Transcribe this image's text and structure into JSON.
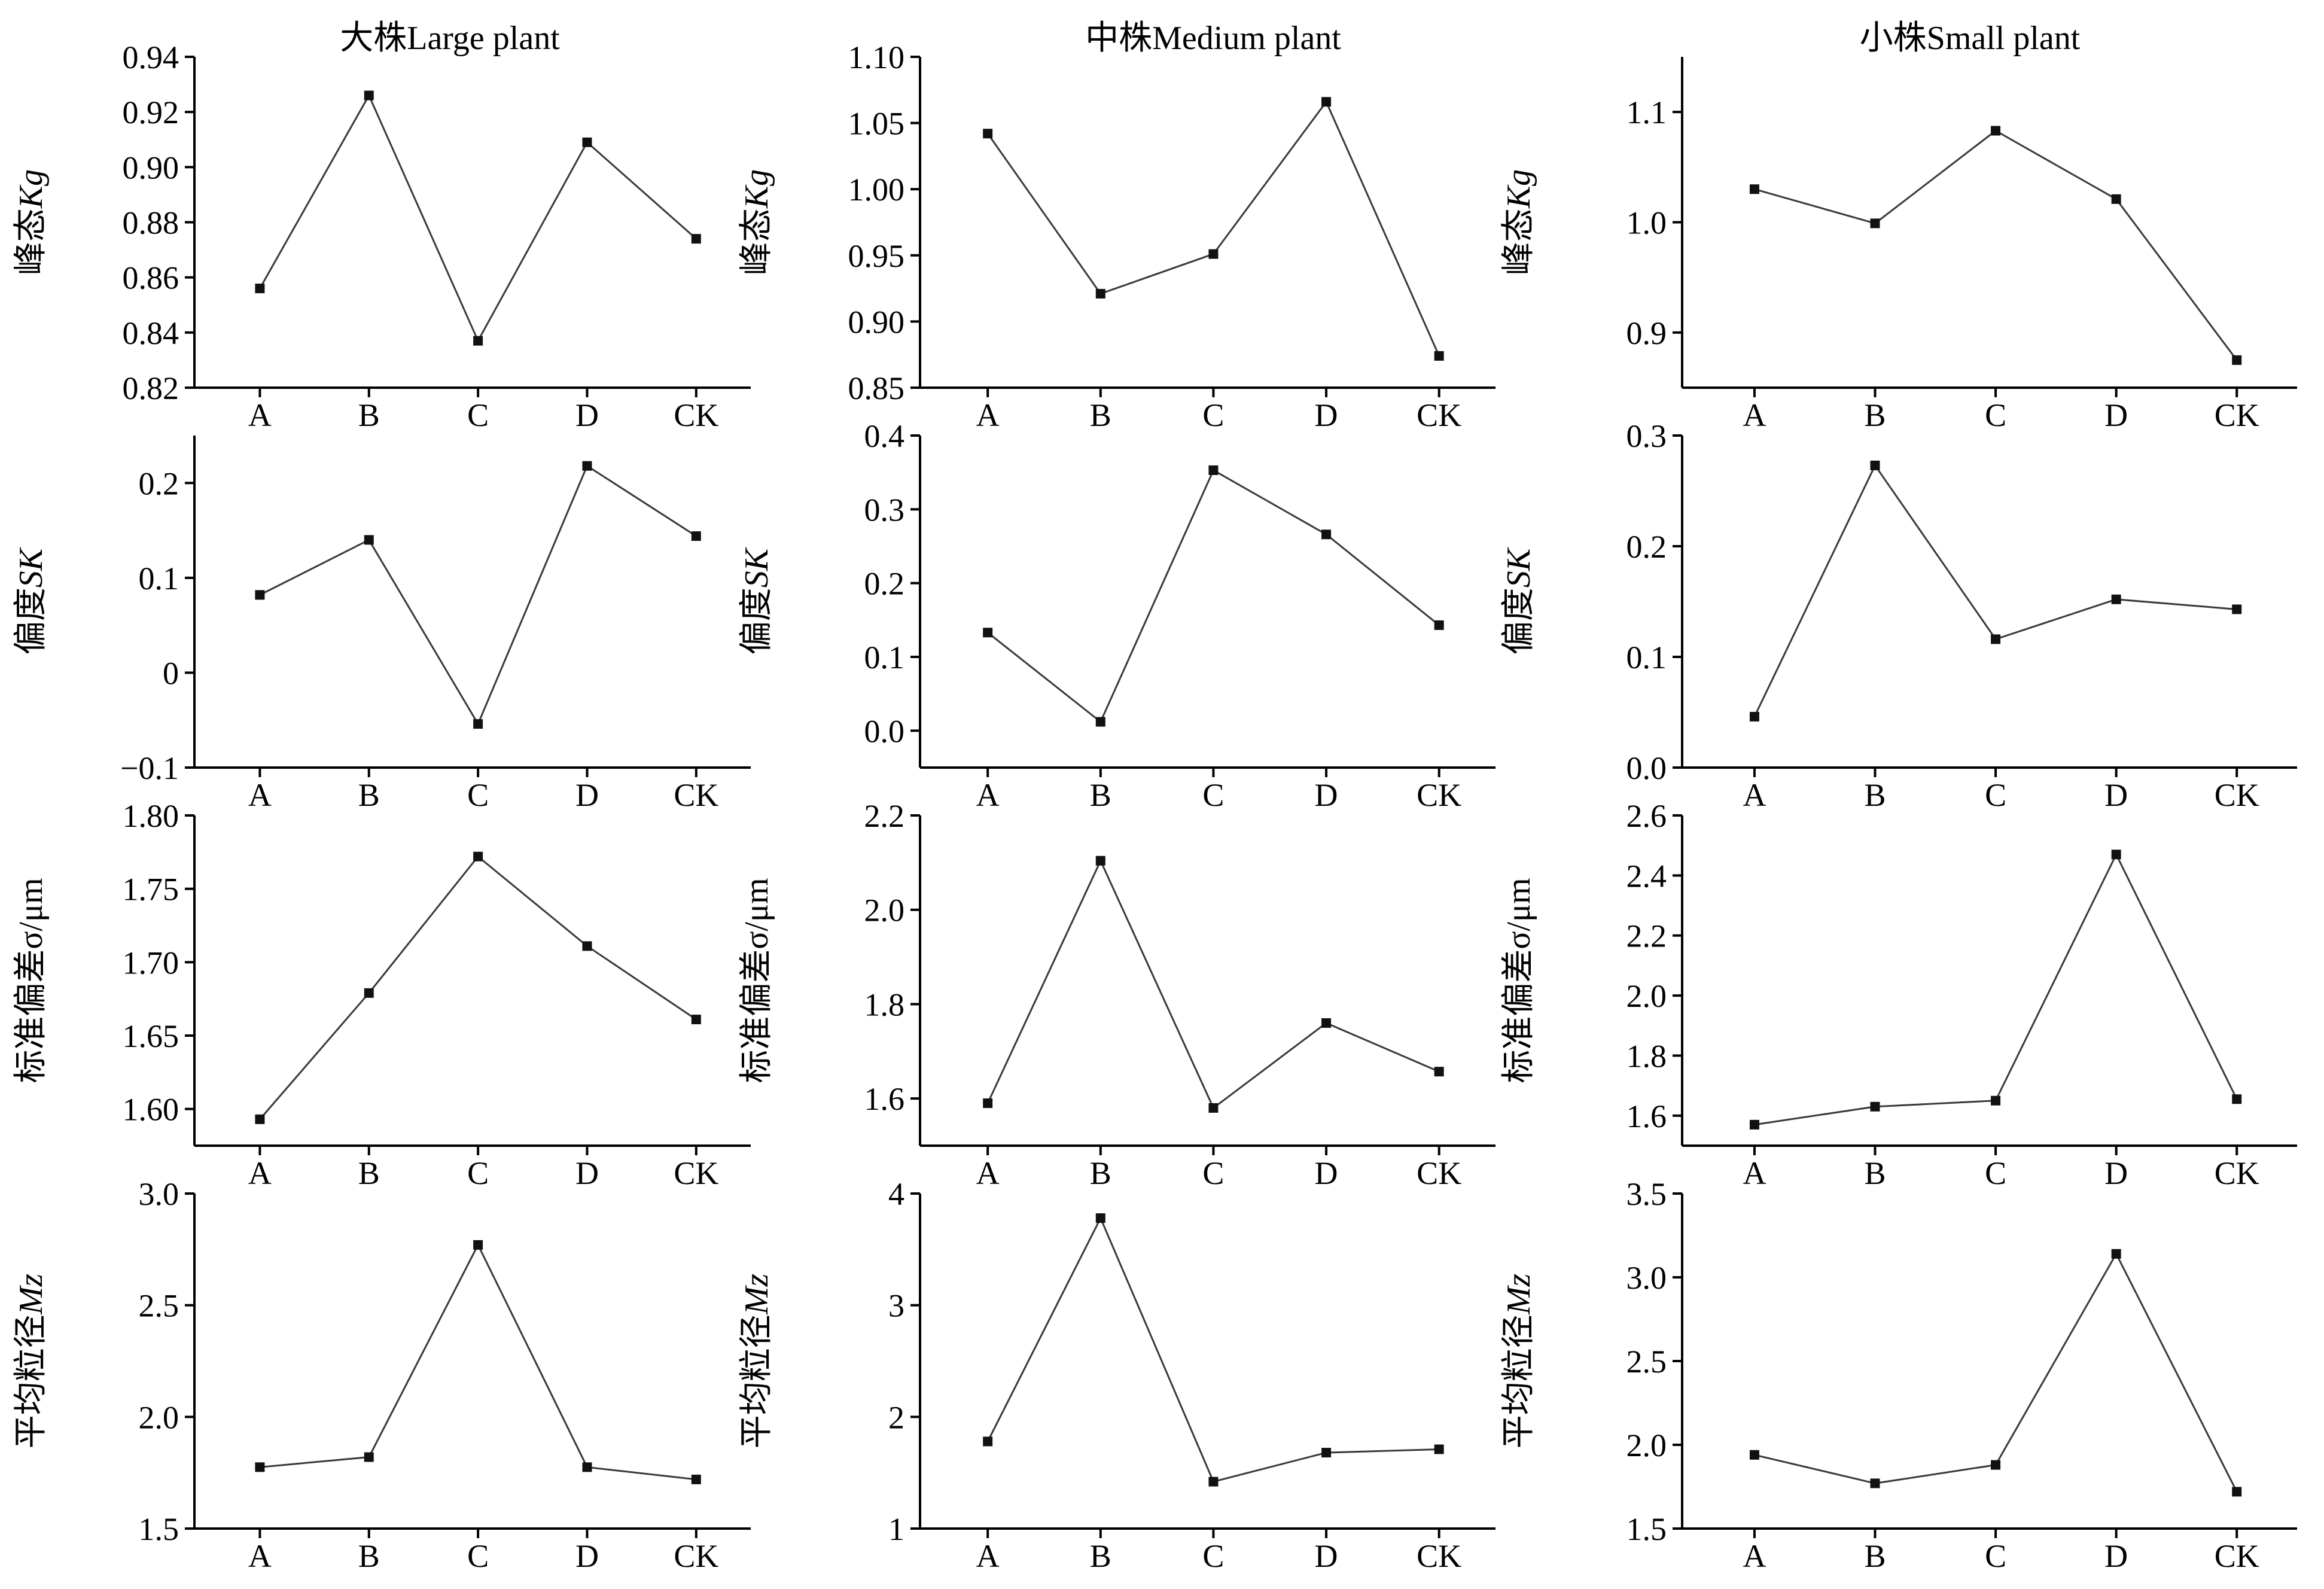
{
  "figure": {
    "column_titles": [
      "大株Large plant",
      "中株Medium plant",
      "小株Small plant"
    ]
  },
  "chart_data": [
    {
      "type": "line",
      "column": "大株Large plant",
      "ylabel": "峰态",
      "ylabel_italic": "Kg",
      "categories": [
        "A",
        "B",
        "C",
        "D",
        "CK"
      ],
      "values": [
        0.856,
        0.926,
        0.837,
        0.909,
        0.874
      ],
      "ylim": [
        0.82,
        0.94
      ],
      "yticks": [
        "0.82",
        "0.84",
        "0.86",
        "0.88",
        "0.90",
        "0.92",
        "0.94"
      ]
    },
    {
      "type": "line",
      "column": "中株Medium plant",
      "ylabel": "峰态",
      "ylabel_italic": "Kg",
      "categories": [
        "A",
        "B",
        "C",
        "D",
        "CK"
      ],
      "values": [
        1.042,
        0.921,
        0.951,
        1.066,
        0.874
      ],
      "ylim": [
        0.85,
        1.1
      ],
      "yticks": [
        "0.85",
        "0.90",
        "0.95",
        "1.00",
        "1.05",
        "1.10"
      ]
    },
    {
      "type": "line",
      "column": "小株Small plant",
      "ylabel": "峰态",
      "ylabel_italic": "Kg",
      "categories": [
        "A",
        "B",
        "C",
        "D",
        "CK"
      ],
      "values": [
        1.03,
        0.999,
        1.083,
        1.021,
        0.875
      ],
      "ylim": [
        0.85,
        1.15
      ],
      "yticks": [
        "0.9",
        "1.0",
        "1.1"
      ]
    },
    {
      "type": "line",
      "column": "大株Large plant",
      "ylabel": "偏度",
      "ylabel_italic": "SK",
      "categories": [
        "A",
        "B",
        "C",
        "D",
        "CK"
      ],
      "values": [
        0.082,
        0.14,
        -0.054,
        0.218,
        0.144
      ],
      "ylim": [
        -0.1,
        0.25
      ],
      "yticks": [
        "−0.1",
        "0",
        "0.1",
        "0.2"
      ]
    },
    {
      "type": "line",
      "column": "中株Medium plant",
      "ylabel": "偏度",
      "ylabel_italic": "SK",
      "categories": [
        "A",
        "B",
        "C",
        "D",
        "CK"
      ],
      "values": [
        0.133,
        0.012,
        0.353,
        0.266,
        0.143
      ],
      "ylim": [
        -0.05,
        0.4
      ],
      "yticks": [
        "0.0",
        "0.1",
        "0.2",
        "0.3",
        "0.4"
      ]
    },
    {
      "type": "line",
      "column": "小株Small plant",
      "ylabel": "偏度",
      "ylabel_italic": "SK",
      "categories": [
        "A",
        "B",
        "C",
        "D",
        "CK"
      ],
      "values": [
        0.046,
        0.273,
        0.116,
        0.152,
        0.143
      ],
      "ylim": [
        0.0,
        0.3
      ],
      "yticks": [
        "0.0",
        "0.1",
        "0.2",
        "0.3"
      ]
    },
    {
      "type": "line",
      "column": "大株Large plant",
      "ylabel": "标准偏差σ/μm",
      "ylabel_italic": "",
      "categories": [
        "A",
        "B",
        "C",
        "D",
        "CK"
      ],
      "values": [
        1.593,
        1.679,
        1.772,
        1.711,
        1.661
      ],
      "ylim": [
        1.575,
        1.8
      ],
      "yticks": [
        "1.60",
        "1.65",
        "1.70",
        "1.75",
        "1.80"
      ]
    },
    {
      "type": "line",
      "column": "中株Medium plant",
      "ylabel": "标准偏差σ/μm",
      "ylabel_italic": "",
      "categories": [
        "A",
        "B",
        "C",
        "D",
        "CK"
      ],
      "values": [
        1.59,
        2.104,
        1.58,
        1.76,
        1.657
      ],
      "ylim": [
        1.5,
        2.2
      ],
      "yticks": [
        "1.6",
        "1.8",
        "2.0",
        "2.2"
      ]
    },
    {
      "type": "line",
      "column": "小株Small plant",
      "ylabel": "标准偏差σ/μm",
      "ylabel_italic": "",
      "categories": [
        "A",
        "B",
        "C",
        "D",
        "CK"
      ],
      "values": [
        1.57,
        1.63,
        1.65,
        2.47,
        1.655
      ],
      "ylim": [
        1.5,
        2.6
      ],
      "yticks": [
        "1.6",
        "1.8",
        "2.0",
        "2.2",
        "2.4",
        "2.6"
      ]
    },
    {
      "type": "line",
      "column": "大株Large plant",
      "ylabel": "平均粒径",
      "ylabel_italic": "Mz",
      "categories": [
        "A",
        "B",
        "C",
        "D",
        "CK"
      ],
      "values": [
        1.775,
        1.82,
        2.77,
        1.775,
        1.72
      ],
      "ylim": [
        1.5,
        3.0
      ],
      "yticks": [
        "1.5",
        "2.0",
        "2.5",
        "3.0"
      ]
    },
    {
      "type": "line",
      "column": "中株Medium plant",
      "ylabel": "平均粒径",
      "ylabel_italic": "Mz",
      "categories": [
        "A",
        "B",
        "C",
        "D",
        "CK"
      ],
      "values": [
        1.78,
        3.78,
        1.42,
        1.68,
        1.71
      ],
      "ylim": [
        1.0,
        4.0
      ],
      "yticks": [
        "1",
        "2",
        "3",
        "4"
      ]
    },
    {
      "type": "line",
      "column": "小株Small plant",
      "ylabel": "平均粒径",
      "ylabel_italic": "Mz",
      "categories": [
        "A",
        "B",
        "C",
        "D",
        "CK"
      ],
      "values": [
        1.94,
        1.77,
        1.88,
        3.14,
        1.72
      ],
      "ylim": [
        1.5,
        3.5
      ],
      "yticks": [
        "1.5",
        "2.0",
        "2.5",
        "3.0",
        "3.5"
      ]
    }
  ]
}
